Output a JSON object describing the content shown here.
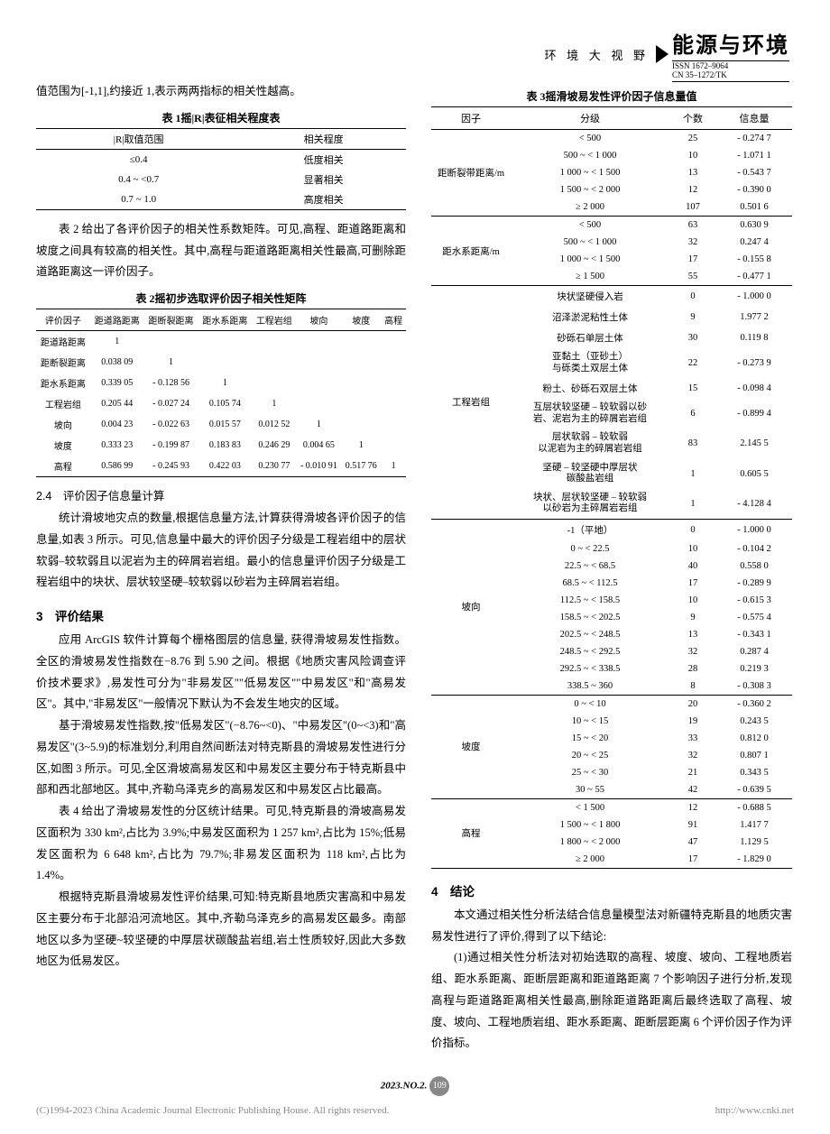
{
  "header": {
    "section_label": "环 境 大 视 野",
    "journal_title": "能源与环境",
    "issn_line1": "ISSN 1672–9064",
    "issn_line2": "CN 35–1272/TK"
  },
  "left": {
    "intro": "值范围为[-1,1],约接近 1,表示两两指标的相关性越高。",
    "table1": {
      "caption": "表 1摇|R|表征相关程度表",
      "headers": [
        "|R|取值范围",
        "相关程度"
      ],
      "rows": [
        [
          "≤0.4",
          "低度相关"
        ],
        [
          "0.4 ~ <0.7",
          "显著相关"
        ],
        [
          "0.7 ~ 1.0",
          "高度相关"
        ]
      ]
    },
    "para1": "表 2 给出了各评价因子的相关性系数矩阵。可见,高程、距道路距离和坡度之间具有较高的相关性。其中,高程与距道路距离相关性最高,可删除距道路距离这一评价因子。",
    "table2": {
      "caption": "表 2摇初步选取评价因子相关性矩阵",
      "headers": [
        "评价因子",
        "距道路距离",
        "距断裂距离",
        "距水系距离",
        "工程岩组",
        "坡向",
        "坡度",
        "高程"
      ],
      "rows": [
        [
          "距道路距离",
          "1",
          "",
          "",
          "",
          "",
          "",
          ""
        ],
        [
          "距断裂距离",
          "0.038 09",
          "1",
          "",
          "",
          "",
          "",
          ""
        ],
        [
          "距水系距离",
          "0.339 05",
          "- 0.128 56",
          "1",
          "",
          "",
          "",
          ""
        ],
        [
          "工程岩组",
          "0.205 44",
          "- 0.027 24",
          "0.105 74",
          "1",
          "",
          "",
          ""
        ],
        [
          "坡向",
          "0.004 23",
          "- 0.022 63",
          "0.015 57",
          "0.012 52",
          "1",
          "",
          ""
        ],
        [
          "坡度",
          "0.333 23",
          "- 0.199 87",
          "0.183 83",
          "0.246 29",
          "0.004 65",
          "1",
          ""
        ],
        [
          "高程",
          "0.586 99",
          "- 0.245 93",
          "0.422 03",
          "0.230 77",
          "- 0.010 91",
          "0.517 76",
          "1"
        ]
      ]
    },
    "sec24_title": "2.4　评价因子信息量计算",
    "sec24_para": "统计滑坡地灾点的数量,根据信息量方法,计算获得滑坡各评价因子的信息量,如表 3 所示。可见,信息量中最大的评价因子分级是工程岩组中的层状软弱–较软弱且以泥岩为主的碎屑岩岩组。最小的信息量评价因子分级是工程岩组中的块状、层状较坚硬–较软弱以砂岩为主碎屑岩岩组。",
    "sec3_title": "3　评价结果",
    "sec3_para1": "应用 ArcGIS 软件计算每个栅格图层的信息量, 获得滑坡易发性指数。全区的滑坡易发性指数在−8.76 到 5.90 之间。根据《地质灾害风险调查评价技术要求》,易发性可分为\"非易发区\"\"低易发区\"\"中易发区\"和\"高易发区\"。其中,\"非易发区\"一般情况下默认为不会发生地灾的区域。",
    "sec3_para2": "基于滑坡易发性指数,按\"低易发区\"(−8.76~<0)、\"中易发区\"(0~<3)和\"高易发区\"(3~5.9)的标准划分,利用自然间断法对特克斯县的滑坡易发性进行分区,如图 3 所示。可见,全区滑坡高易发区和中易发区主要分布于特克斯县中部和西北部地区。其中,齐勒乌泽克乡的高易发区和中易发区占比最高。",
    "sec3_para3": "表 4 给出了滑坡易发性的分区统计结果。可见,特克斯县的滑坡高易发区面积为 330 km²,占比为 3.9%;中易发区面积为 1 257 km²,占比为 15%;低易发区面积为 6 648 km²,占比为 79.7%;非易发区面积为 118 km²,占比为 1.4%。",
    "sec3_para4": "根据特克斯县滑坡易发性评价结果,可知:特克斯县地质灾害高和中易发区主要分布于北部沿河流地区。其中,齐勒乌泽克乡的高易发区最多。南部地区以多为坚硬~较坚硬的中厚层状碳酸盐岩组,岩土性质较好,因此大多数地区为低易发区。"
  },
  "right": {
    "table3": {
      "caption": "表 3摇滑坡易发性评价因子信息量值",
      "headers": [
        "因子",
        "分级",
        "个数",
        "信息量"
      ],
      "groups": [
        {
          "factor": "距断裂带距离/m",
          "rows": [
            [
              "< 500",
              "25",
              "- 0.274 7"
            ],
            [
              "500 ~ < 1 000",
              "10",
              "- 1.071 1"
            ],
            [
              "1 000 ~ < 1 500",
              "13",
              "- 0.543 7"
            ],
            [
              "1 500 ~ < 2 000",
              "12",
              "- 0.390 0"
            ],
            [
              "≥ 2 000",
              "107",
              "0.501 6"
            ]
          ]
        },
        {
          "factor": "距水系距离/m",
          "rows": [
            [
              "< 500",
              "63",
              "0.630 9"
            ],
            [
              "500 ~ < 1 000",
              "32",
              "0.247 4"
            ],
            [
              "1 000 ~ < 1 500",
              "17",
              "- 0.155 8"
            ],
            [
              "≥ 1 500",
              "55",
              "- 0.477 1"
            ]
          ]
        },
        {
          "factor": "工程岩组",
          "rows": [
            [
              "块状坚硬侵入岩",
              "0",
              "- 1.000 0"
            ],
            [
              "沼泽淤泥粘性土体",
              "9",
              "1.977 2"
            ],
            [
              "砂砾石单层土体",
              "30",
              "0.119 8"
            ],
            [
              "亚黏土（亚砂土）\n与砾类土双层土体",
              "22",
              "- 0.273 9"
            ],
            [
              "粉土、砂砾石双层土体",
              "15",
              "- 0.098 4"
            ],
            [
              "互层状较坚硬 – 较软弱以砂\n岩、泥岩为主的碎屑岩岩组",
              "6",
              "- 0.899 4"
            ],
            [
              "层状软弱 – 较软弱\n以泥岩为主的碎屑岩岩组",
              "83",
              "2.145 5"
            ],
            [
              "坚硬 – 较坚硬中厚层状\n碳酸盐岩组",
              "1",
              "0.605 5"
            ],
            [
              "块状、层状较坚硬 – 较软弱\n以砂岩为主碎屑岩岩组",
              "1",
              "- 4.128 4"
            ]
          ]
        },
        {
          "factor": "坡向",
          "rows": [
            [
              "-1（平地）",
              "0",
              "- 1.000 0"
            ],
            [
              "0 ~ < 22.5",
              "10",
              "- 0.104 2"
            ],
            [
              "22.5 ~ < 68.5",
              "40",
              "0.558 0"
            ],
            [
              "68.5 ~ < 112.5",
              "17",
              "- 0.289 9"
            ],
            [
              "112.5 ~ < 158.5",
              "10",
              "- 0.615 3"
            ],
            [
              "158.5 ~ < 202.5",
              "9",
              "- 0.575 4"
            ],
            [
              "202.5 ~ < 248.5",
              "13",
              "- 0.343 1"
            ],
            [
              "248.5 ~ < 292.5",
              "32",
              "0.287 4"
            ],
            [
              "292.5 ~ < 338.5",
              "28",
              "0.219 3"
            ],
            [
              "338.5 ~ 360",
              "8",
              "- 0.308 3"
            ]
          ]
        },
        {
          "factor": "坡度",
          "rows": [
            [
              "0 ~ < 10",
              "20",
              "- 0.360 2"
            ],
            [
              "10 ~ < 15",
              "19",
              "0.243 5"
            ],
            [
              "15 ~ < 20",
              "33",
              "0.812 0"
            ],
            [
              "20 ~ < 25",
              "32",
              "0.807 1"
            ],
            [
              "25 ~ < 30",
              "21",
              "0.343 5"
            ],
            [
              "30 ~ 55",
              "42",
              "- 0.639 5"
            ]
          ]
        },
        {
          "factor": "高程",
          "rows": [
            [
              "< 1 500",
              "12",
              "- 0.688 5"
            ],
            [
              "1 500 ~ < 1 800",
              "91",
              "1.417 7"
            ],
            [
              "1 800 ~ < 2 000",
              "47",
              "1.129 5"
            ],
            [
              "≥ 2 000",
              "17",
              "- 1.829 0"
            ]
          ]
        }
      ]
    },
    "sec4_title": "4　结论",
    "sec4_para1": "本文通过相关性分析法结合信息量模型法对新疆特克斯县的地质灾害易发性进行了评价,得到了以下结论:",
    "sec4_para2": "(1)通过相关性分析法对初始选取的高程、坡度、坡向、工程地质岩组、距水系距离、距断层距离和距道路距离 7 个影响因子进行分析,发现高程与距道路距离相关性最高,删除距道路距离后最终选取了高程、坡度、坡向、工程地质岩组、距水系距离、距断层距离 6 个评价因子作为评价指标。"
  },
  "footer": {
    "issue": "2023.NO.2.",
    "page": "109",
    "copyright": "(C)1994-2023 China Academic Journal Electronic Publishing House. All rights reserved.",
    "url": "http://www.cnki.net"
  }
}
